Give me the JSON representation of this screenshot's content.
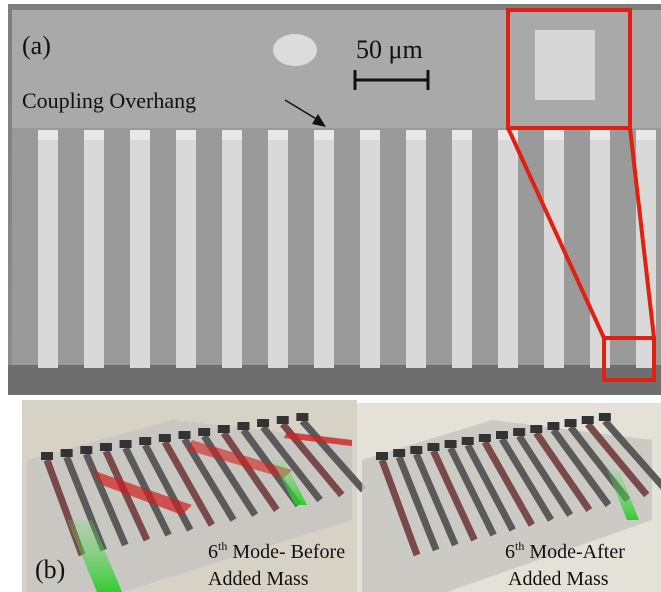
{
  "panel_a": {
    "label": "(a)",
    "scale_bar": "50 μm",
    "annotation": "Coupling Overhang"
  },
  "panel_b": {
    "label": "(b)",
    "left_caption": {
      "number": "6",
      "superscript": "th",
      "text": " Mode- Before",
      "line2": "Added Mass"
    },
    "right_caption": {
      "number": "6",
      "superscript": "th",
      "text": " Mode-After",
      "line2": "Added Mass"
    }
  }
}
